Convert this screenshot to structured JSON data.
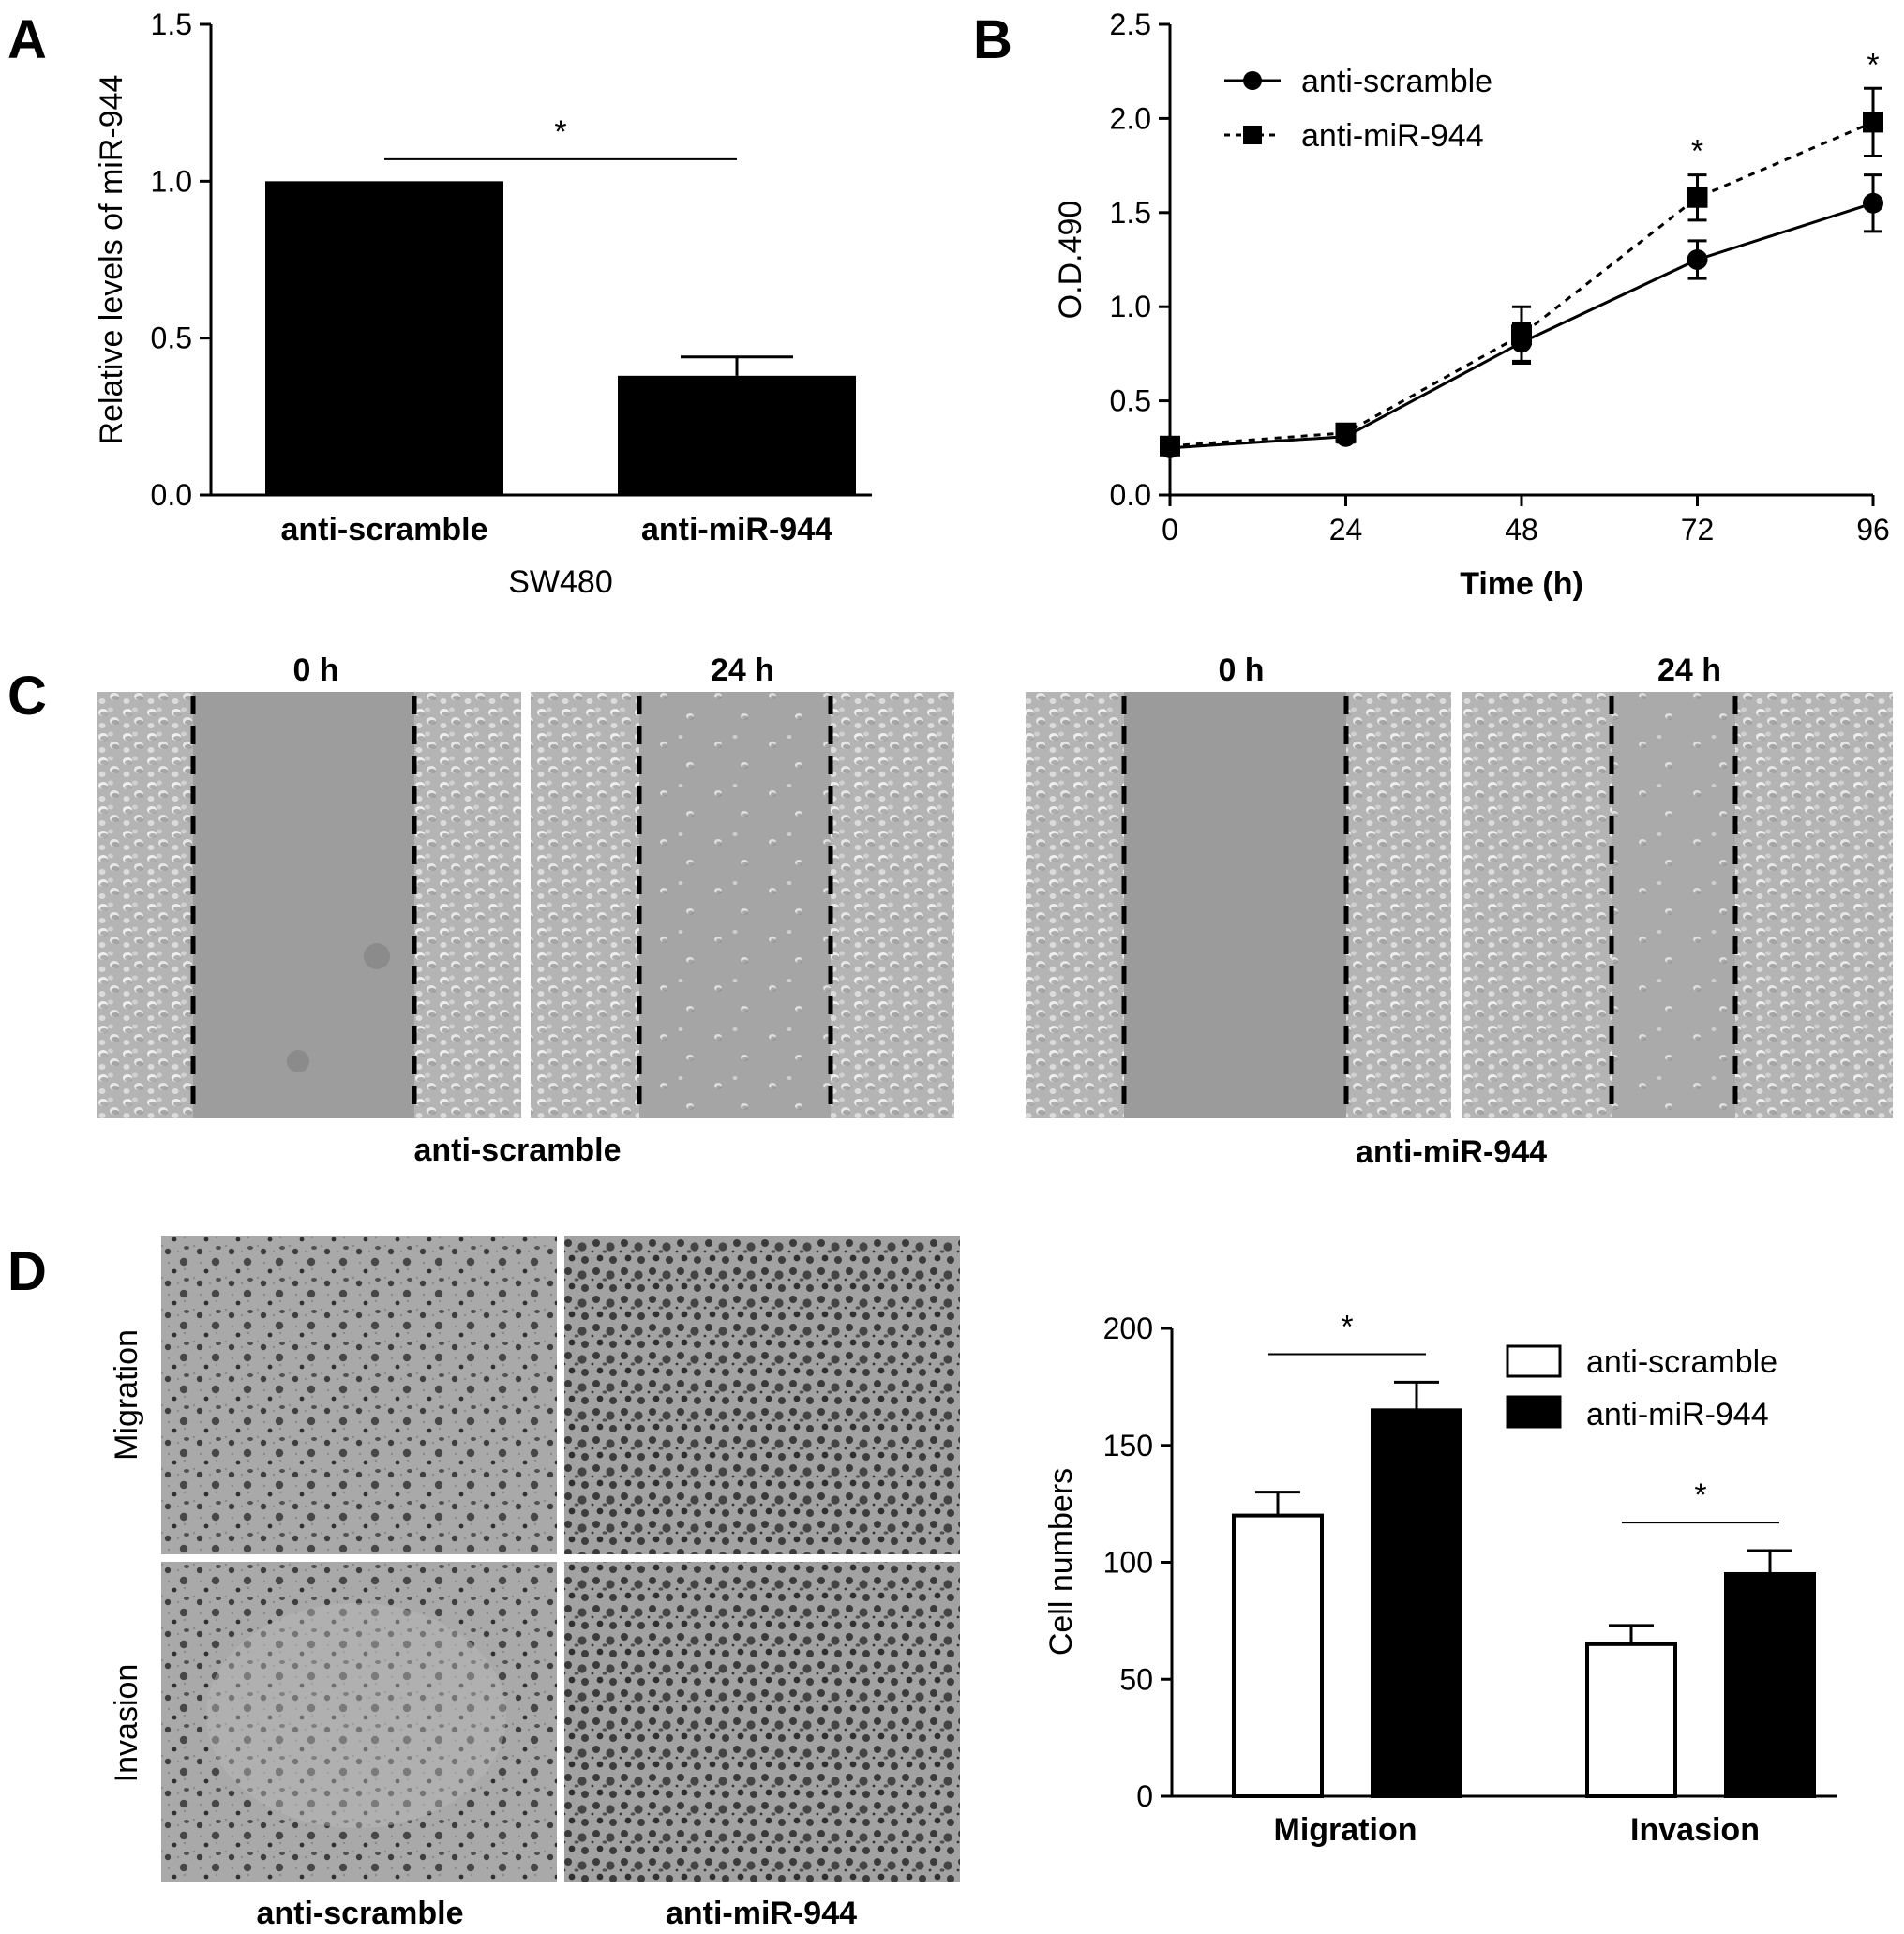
{
  "panels": {
    "A": "A",
    "B": "B",
    "C": "C",
    "D": "D"
  },
  "chart_data": [
    {
      "panel": "A",
      "type": "bar",
      "categories": [
        "anti-scramble",
        "anti-miR-944"
      ],
      "values": [
        1.0,
        0.38
      ],
      "errors": [
        0,
        0.06
      ],
      "xlabel": "SW480",
      "ylabel": "Relative levels of miR-944",
      "ylim": [
        0,
        1.5
      ],
      "yticks": [
        "0.0",
        "0.5",
        "1.0",
        "1.5"
      ],
      "significance": [
        {
          "between": [
            0,
            1
          ],
          "label": "*"
        }
      ],
      "grid": false
    },
    {
      "panel": "B",
      "type": "line",
      "x": [
        0,
        24,
        48,
        72,
        96
      ],
      "xticks": [
        "0",
        "24",
        "48",
        "72",
        "96"
      ],
      "series": [
        {
          "name": "anti-scramble",
          "marker": "circle",
          "line": "solid",
          "values": [
            0.25,
            0.31,
            0.81,
            1.25,
            1.55
          ],
          "errors": [
            0.03,
            0.03,
            0.1,
            0.1,
            0.15
          ]
        },
        {
          "name": "anti-miR-944",
          "marker": "square",
          "line": "dashed",
          "values": [
            0.26,
            0.33,
            0.85,
            1.58,
            1.98
          ],
          "errors": [
            0.03,
            0.04,
            0.15,
            0.12,
            0.18
          ]
        }
      ],
      "xlabel": "Time (h)",
      "ylabel": "O.D.490",
      "ylim": [
        0,
        2.5
      ],
      "yticks": [
        "0.0",
        "0.5",
        "1.0",
        "1.5",
        "2.0",
        "2.5"
      ],
      "significance_marks": [
        {
          "x": 72,
          "label": "*"
        },
        {
          "x": 96,
          "label": "*"
        }
      ],
      "legend": "top-left",
      "grid": false
    },
    {
      "panel": "D",
      "type": "bar",
      "categories": [
        "Migration",
        "Invasion"
      ],
      "series": [
        {
          "name": "anti-scramble",
          "fill": "#ffffff",
          "values": [
            120,
            65
          ],
          "errors": [
            10,
            8
          ]
        },
        {
          "name": "anti-miR-944",
          "fill": "#000000",
          "values": [
            165,
            95
          ],
          "errors": [
            12,
            10
          ]
        }
      ],
      "xlabel": "",
      "ylabel": "Cell numbers",
      "ylim": [
        0,
        200
      ],
      "yticks": [
        "0",
        "50",
        "100",
        "150",
        "200"
      ],
      "significance": [
        {
          "category": 0,
          "label": "*"
        },
        {
          "category": 1,
          "label": "*"
        }
      ],
      "legend": "top-right",
      "grid": false
    }
  ],
  "panel_c": {
    "time_labels": [
      "0 h",
      "24 h",
      "0 h",
      "24 h"
    ],
    "group_labels": [
      "anti-scramble",
      "anti-miR-944"
    ]
  },
  "panel_d_images": {
    "row_labels": [
      "Migration",
      "Invasion"
    ],
    "column_labels": [
      "anti-scramble",
      "anti-miR-944"
    ]
  }
}
